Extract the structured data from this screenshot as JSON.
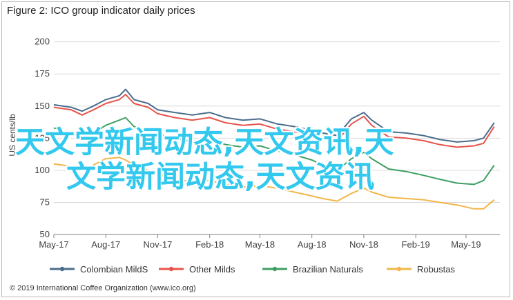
{
  "chart_data": {
    "type": "line",
    "title": "Figure 2: ICO group indicator daily prices",
    "xlabel": "",
    "ylabel": "US cents/lb",
    "ylim": [
      50,
      210
    ],
    "yticks": [
      50,
      75,
      100,
      125,
      150,
      175,
      200
    ],
    "xlim": [
      "2017-05-01",
      "2019-06-30"
    ],
    "xticks": [
      {
        "label": "May-17",
        "date": "2017-05-01"
      },
      {
        "label": "Aug-17",
        "date": "2017-08-01"
      },
      {
        "label": "Nov-17",
        "date": "2017-11-01"
      },
      {
        "label": "Feb-18",
        "date": "2018-02-01"
      },
      {
        "label": "May-18",
        "date": "2018-05-01"
      },
      {
        "label": "Aug-18",
        "date": "2018-08-01"
      },
      {
        "label": "Nov-18",
        "date": "2018-11-01"
      },
      {
        "label": "Feb-19",
        "date": "2019-02-01"
      },
      {
        "label": "May-19",
        "date": "2019-05-01"
      }
    ],
    "grid": "horizontal",
    "legend_position": "bottom",
    "series": [
      {
        "name": "Colombian MildS",
        "color": "#4a6d8c",
        "points": [
          [
            "2017-05-01",
            151
          ],
          [
            "2017-06-01",
            149
          ],
          [
            "2017-06-20",
            146
          ],
          [
            "2017-07-10",
            150
          ],
          [
            "2017-08-01",
            155
          ],
          [
            "2017-08-25",
            158
          ],
          [
            "2017-09-05",
            163
          ],
          [
            "2017-09-20",
            155
          ],
          [
            "2017-10-15",
            152
          ],
          [
            "2017-11-01",
            147
          ],
          [
            "2017-12-01",
            145
          ],
          [
            "2018-01-01",
            143
          ],
          [
            "2018-02-01",
            145
          ],
          [
            "2018-03-01",
            141
          ],
          [
            "2018-04-01",
            139
          ],
          [
            "2018-05-01",
            140
          ],
          [
            "2018-06-01",
            136
          ],
          [
            "2018-07-01",
            134
          ],
          [
            "2018-08-01",
            131
          ],
          [
            "2018-08-20",
            129
          ],
          [
            "2018-09-15",
            127
          ],
          [
            "2018-10-10",
            140
          ],
          [
            "2018-11-01",
            145
          ],
          [
            "2018-11-15",
            139
          ],
          [
            "2018-12-15",
            130
          ],
          [
            "2019-01-15",
            129
          ],
          [
            "2019-02-15",
            127
          ],
          [
            "2019-03-15",
            124
          ],
          [
            "2019-04-15",
            122
          ],
          [
            "2019-05-15",
            123
          ],
          [
            "2019-06-01",
            125
          ],
          [
            "2019-06-20",
            137
          ]
        ]
      },
      {
        "name": "Other Milds",
        "color": "#e8534a",
        "points": [
          [
            "2017-05-01",
            149
          ],
          [
            "2017-06-01",
            147
          ],
          [
            "2017-06-20",
            143
          ],
          [
            "2017-07-10",
            147
          ],
          [
            "2017-08-01",
            152
          ],
          [
            "2017-08-25",
            155
          ],
          [
            "2017-09-05",
            159
          ],
          [
            "2017-09-20",
            152
          ],
          [
            "2017-10-15",
            149
          ],
          [
            "2017-11-01",
            144
          ],
          [
            "2017-12-01",
            141
          ],
          [
            "2018-01-01",
            139
          ],
          [
            "2018-02-01",
            141
          ],
          [
            "2018-03-01",
            137
          ],
          [
            "2018-04-01",
            135
          ],
          [
            "2018-05-01",
            136
          ],
          [
            "2018-06-01",
            132
          ],
          [
            "2018-07-01",
            130
          ],
          [
            "2018-08-01",
            127
          ],
          [
            "2018-08-20",
            125
          ],
          [
            "2018-09-15",
            123
          ],
          [
            "2018-10-10",
            136
          ],
          [
            "2018-11-01",
            142
          ],
          [
            "2018-11-15",
            135
          ],
          [
            "2018-12-15",
            126
          ],
          [
            "2019-01-15",
            125
          ],
          [
            "2019-02-15",
            123
          ],
          [
            "2019-03-15",
            120
          ],
          [
            "2019-04-15",
            118
          ],
          [
            "2019-05-15",
            119
          ],
          [
            "2019-06-01",
            121
          ],
          [
            "2019-06-20",
            134
          ]
        ]
      },
      {
        "name": "Brazilian Naturals",
        "color": "#3f9e63",
        "points": [
          [
            "2017-05-01",
            133
          ],
          [
            "2017-06-01",
            128
          ],
          [
            "2017-06-20",
            124
          ],
          [
            "2017-07-10",
            129
          ],
          [
            "2017-08-01",
            135
          ],
          [
            "2017-08-25",
            139
          ],
          [
            "2017-09-05",
            141
          ],
          [
            "2017-09-20",
            134
          ],
          [
            "2017-10-15",
            131
          ],
          [
            "2017-11-01",
            128
          ],
          [
            "2017-12-01",
            125
          ],
          [
            "2018-01-01",
            122
          ],
          [
            "2018-02-01",
            124
          ],
          [
            "2018-03-01",
            120
          ],
          [
            "2018-04-01",
            118
          ],
          [
            "2018-05-01",
            119
          ],
          [
            "2018-06-01",
            115
          ],
          [
            "2018-07-01",
            112
          ],
          [
            "2018-08-01",
            108
          ],
          [
            "2018-08-20",
            104
          ],
          [
            "2018-09-15",
            100
          ],
          [
            "2018-10-10",
            109
          ],
          [
            "2018-11-01",
            114
          ],
          [
            "2018-11-15",
            109
          ],
          [
            "2018-12-15",
            101
          ],
          [
            "2019-01-15",
            99
          ],
          [
            "2019-02-15",
            96
          ],
          [
            "2019-03-15",
            93
          ],
          [
            "2019-04-15",
            90
          ],
          [
            "2019-05-15",
            89
          ],
          [
            "2019-06-01",
            92
          ],
          [
            "2019-06-20",
            104
          ]
        ]
      },
      {
        "name": "Robustas",
        "color": "#f2b64a",
        "points": [
          [
            "2017-05-01",
            105
          ],
          [
            "2017-06-01",
            103
          ],
          [
            "2017-06-20",
            100
          ],
          [
            "2017-07-10",
            104
          ],
          [
            "2017-08-01",
            109
          ],
          [
            "2017-08-25",
            110
          ],
          [
            "2017-09-05",
            108
          ],
          [
            "2017-09-20",
            104
          ],
          [
            "2017-10-15",
            100
          ],
          [
            "2017-11-01",
            97
          ],
          [
            "2017-12-01",
            93
          ],
          [
            "2018-01-01",
            91
          ],
          [
            "2018-02-01",
            92
          ],
          [
            "2018-03-01",
            89
          ],
          [
            "2018-04-01",
            87
          ],
          [
            "2018-05-01",
            88
          ],
          [
            "2018-06-01",
            86
          ],
          [
            "2018-07-01",
            83
          ],
          [
            "2018-08-01",
            80
          ],
          [
            "2018-08-20",
            78
          ],
          [
            "2018-09-15",
            76
          ],
          [
            "2018-10-10",
            82
          ],
          [
            "2018-11-01",
            86
          ],
          [
            "2018-11-15",
            83
          ],
          [
            "2018-12-15",
            79
          ],
          [
            "2019-01-15",
            78
          ],
          [
            "2019-02-15",
            77
          ],
          [
            "2019-03-15",
            75
          ],
          [
            "2019-04-15",
            73
          ],
          [
            "2019-05-15",
            70
          ],
          [
            "2019-06-01",
            70
          ],
          [
            "2019-06-20",
            77
          ]
        ]
      }
    ]
  },
  "credit": "© 2019 International Coffee Organization (www.ico.org)",
  "overlay": {
    "line1": "天文学新闻动态,天文资讯,天",
    "line2": "文学新闻动态,天文资讯"
  }
}
